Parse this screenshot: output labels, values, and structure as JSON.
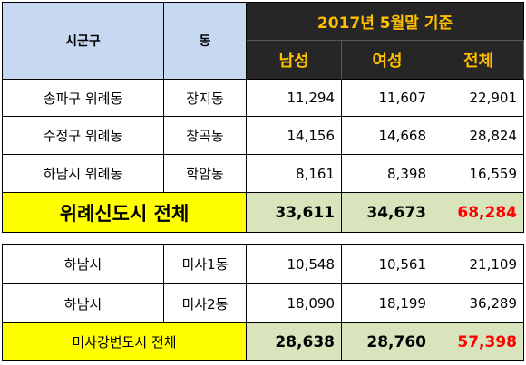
{
  "header": {
    "col_sigungu": "시군구",
    "col_dong": "동",
    "date": "2017년 5월말 기준",
    "col_male": "남성",
    "col_female": "여성",
    "col_total": "전체"
  },
  "wirye_rows": [
    {
      "sigungu": "송파구 위례동",
      "dong": "장지동",
      "male": "11,294",
      "female": "11,607",
      "total": "22,901"
    },
    {
      "sigungu": "수정구 위례동",
      "dong": "창곡동",
      "male": "14,156",
      "female": "14,668",
      "total": "28,824"
    },
    {
      "sigungu": "하남시 위례동",
      "dong": "학암동",
      "male": "8,161",
      "female": "8,398",
      "total": "16,559"
    }
  ],
  "wirye_total": {
    "label": "위례신도시 전체",
    "male": "33,611",
    "female": "34,673",
    "total": "68,284"
  },
  "misa_rows": [
    {
      "sigungu": "하남시",
      "dong": "미사1동",
      "male": "10,548",
      "female": "10,561",
      "total": "21,109"
    },
    {
      "sigungu": "하남시",
      "dong": "미사2동",
      "male": "18,090",
      "female": "18,199",
      "total": "36,289"
    }
  ],
  "misa_total": {
    "label": "미사강변도시 전체",
    "male": "28,638",
    "female": "28,760",
    "total": "57,398"
  },
  "colors": {
    "header_left": "#c6d9f1",
    "header_dark": "#262626",
    "header_text": "#ffc000",
    "total_label": "#ffff00",
    "total_cell": "#d8e4bc",
    "total_red": "#ff0000"
  }
}
